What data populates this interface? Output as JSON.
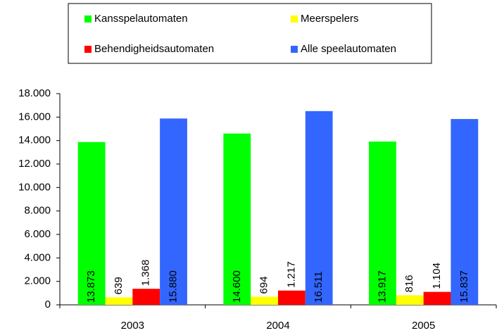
{
  "chart_data": {
    "type": "bar",
    "categories": [
      "2003",
      "2004",
      "2005"
    ],
    "series": [
      {
        "name": "Kansspelautomaten",
        "color": "#00ff00",
        "label_color": "#000000",
        "values": [
          13873,
          14600,
          13917
        ],
        "value_labels": [
          "13.873",
          "14.600",
          "13.917"
        ]
      },
      {
        "name": "Meerspelers",
        "color": "#ffff00",
        "label_color": "#000000",
        "values": [
          639,
          694,
          816
        ],
        "value_labels": [
          "639",
          "694",
          "816"
        ]
      },
      {
        "name": "Behendigheidsautomaten",
        "color": "#ff0000",
        "label_color": "#000000",
        "values": [
          1368,
          1217,
          1104
        ],
        "value_labels": [
          "1.368",
          "1.217",
          "1.104"
        ]
      },
      {
        "name": "Alle speelautomaten",
        "color": "#3366ff",
        "label_color": "#ffffff",
        "values": [
          15880,
          16511,
          15837
        ],
        "value_labels": [
          "15.880",
          "16.511",
          "15.837"
        ]
      }
    ],
    "ylim": [
      0,
      18000
    ],
    "yticks": [
      0,
      {
        "value": 2000,
        "label": "2.000"
      },
      {
        "value": 4000,
        "label": "4.000"
      },
      {
        "value": 6000,
        "label": "6.000"
      },
      {
        "value": 8000,
        "label": "8.000"
      },
      {
        "value": 10000,
        "label": "10.000"
      },
      {
        "value": 12000,
        "label": "12.000"
      },
      {
        "value": 14000,
        "label": "14.000"
      },
      {
        "value": 16000,
        "label": "16.000"
      },
      {
        "value": 18000,
        "label": "18.000"
      }
    ],
    "legend": "top"
  }
}
